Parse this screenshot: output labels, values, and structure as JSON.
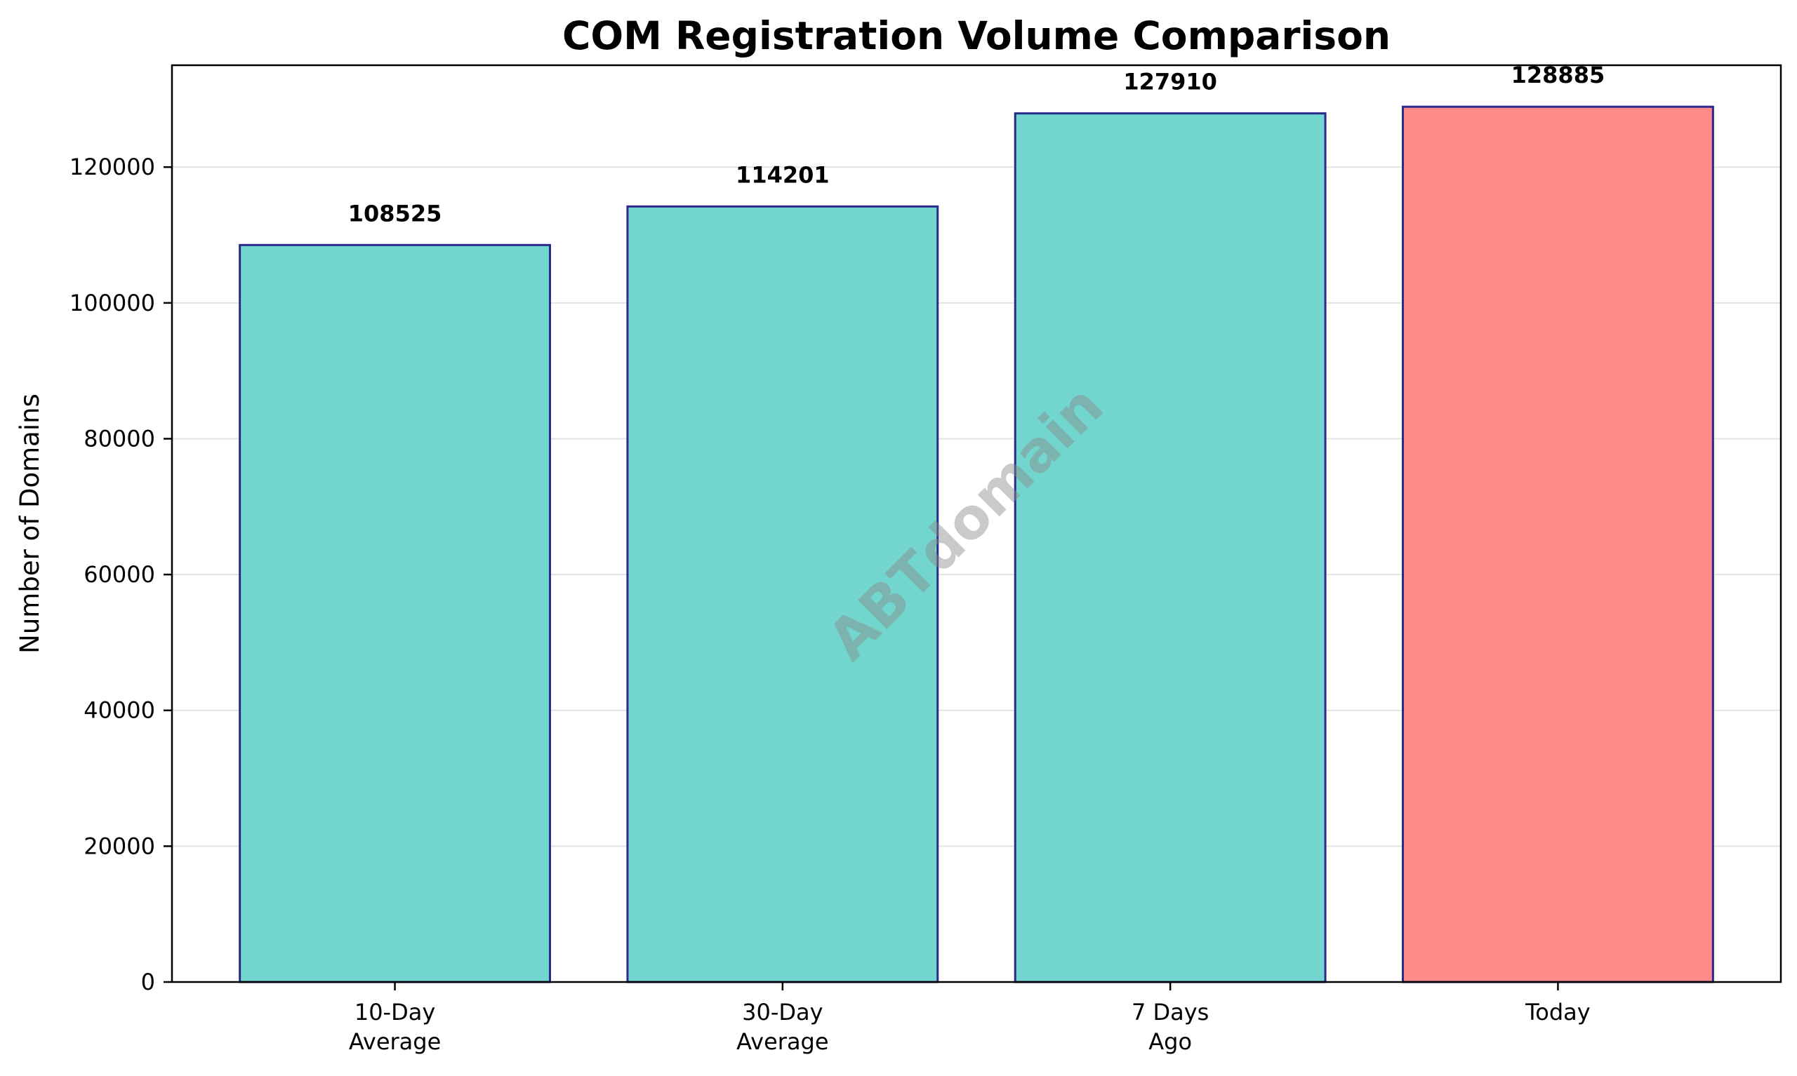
{
  "chart_data": {
    "type": "bar",
    "title": "COM Registration Volume Comparison",
    "xlabel": "",
    "ylabel": "Number of Domains",
    "categories": [
      [
        "10-Day",
        "Average"
      ],
      [
        "30-Day",
        "Average"
      ],
      [
        "7 Days",
        "Ago"
      ],
      [
        "Today"
      ]
    ],
    "values": [
      108525,
      114201,
      127910,
      128885
    ],
    "value_labels": [
      "108525",
      "114201",
      "127910",
      "128885"
    ],
    "bar_colors": [
      "#72d6ce",
      "#72d6ce",
      "#72d6ce",
      "#ff8a8a"
    ],
    "bar_edge_color": "#2a2a8a",
    "ylim": [
      0,
      135000
    ],
    "yticks": [
      0,
      20000,
      40000,
      60000,
      80000,
      100000,
      120000
    ],
    "ytick_labels": [
      "0",
      "20000",
      "40000",
      "60000",
      "80000",
      "100000",
      "120000"
    ],
    "grid": "horizontal",
    "legend": "none",
    "watermark": "ABTdomain"
  }
}
